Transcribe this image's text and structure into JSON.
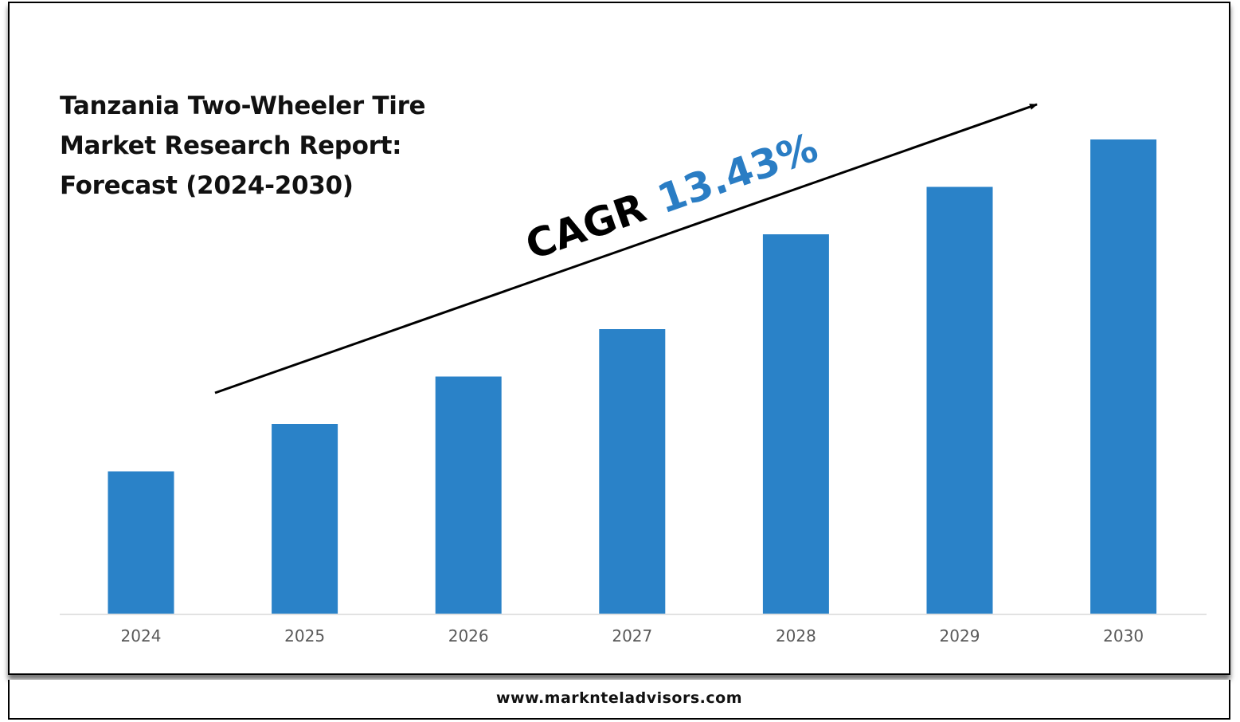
{
  "title_lines": [
    "Tanzania Two-Wheeler Tire",
    "Market Research Report:",
    "Forecast (2024-2030)"
  ],
  "cagr": {
    "label": "CAGR",
    "value": "13.43%",
    "value_color": "#2a7dc4"
  },
  "footer": {
    "website": "www.marknteladvisors.com"
  },
  "colors": {
    "bar": "#2a82c8",
    "axis": "#d9d9d9",
    "tick_text": "#595959"
  },
  "chart_data": {
    "type": "bar",
    "title": "Tanzania Two-Wheeler Tire Market Research Report: Forecast (2024-2030)",
    "categories": [
      "2024",
      "2025",
      "2026",
      "2027",
      "2028",
      "2029",
      "2030"
    ],
    "values": [
      30,
      40,
      50,
      60,
      80,
      90,
      100
    ],
    "xlabel": "",
    "ylabel": "",
    "ylim": [
      0,
      100
    ],
    "grid": false,
    "legend": "none",
    "annotation": "CAGR 13.43%"
  }
}
